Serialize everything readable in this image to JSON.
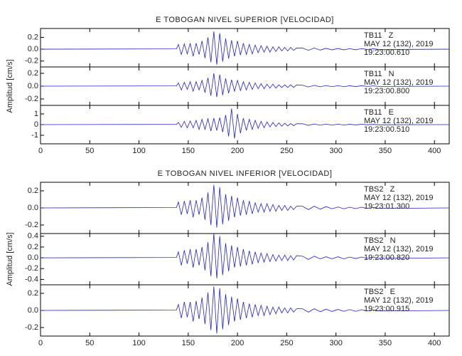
{
  "chart_data": [
    {
      "type": "line",
      "title": "E TOBOGAN NIVEL SUPERIOR [VELOCIDAD]",
      "ylabel": "Amplitud [cm/s]",
      "color": "#1f1fd6",
      "xlim": [
        0,
        415
      ],
      "xticks": [
        0,
        50,
        100,
        150,
        200,
        250,
        300,
        350,
        400
      ],
      "x": [
        0,
        138,
        140,
        143,
        146,
        149,
        152,
        155,
        158,
        161,
        164,
        167,
        170,
        173,
        176,
        179,
        182,
        185,
        188,
        191,
        194,
        197,
        200,
        203,
        206,
        209,
        212,
        215,
        218,
        221,
        224,
        227,
        230,
        233,
        236,
        239,
        242,
        245,
        248,
        251,
        254,
        257,
        260,
        266,
        272,
        278,
        284,
        290,
        296,
        302,
        308,
        314,
        320,
        326,
        332,
        338,
        344,
        415
      ],
      "series": [
        {
          "name": "TB11   Z",
          "date": "MAY 12 (132), 2019",
          "time": "19:23:00.610",
          "ylim": [
            -0.3,
            0.35
          ],
          "yticks": [
            -0.2,
            {
              "value": 0,
              "label": "0.0"
            },
            0.2
          ],
          "values": [
            0,
            0.005,
            0.08,
            -0.09,
            0.09,
            -0.08,
            0.1,
            -0.12,
            0.1,
            -0.09,
            0.14,
            -0.15,
            0.2,
            -0.22,
            0.3,
            -0.26,
            0.27,
            -0.21,
            0.18,
            -0.16,
            0.15,
            -0.12,
            0.14,
            -0.1,
            0.1,
            -0.09,
            0.08,
            -0.08,
            0.07,
            -0.06,
            0.06,
            -0.05,
            0.05,
            -0.05,
            0.04,
            -0.04,
            0.04,
            -0.03,
            0.03,
            -0.03,
            0.03,
            -0.02,
            0.02,
            0.02,
            -0.02,
            0.02,
            -0.015,
            0.015,
            -0.012,
            0.012,
            -0.012,
            0.01,
            -0.01,
            0.01,
            -0.006,
            0.006,
            -0.006,
            0
          ]
        },
        {
          "name": "TB11   N",
          "date": "MAY 12 (132), 2019",
          "time": "19:23:00.800",
          "ylim": [
            -0.3,
            0.3
          ],
          "yticks": [
            -0.2,
            {
              "value": 0,
              "label": "0.0"
            },
            0.2
          ],
          "values": [
            0,
            0.004,
            0.05,
            -0.06,
            0.06,
            -0.05,
            0.07,
            -0.08,
            0.07,
            -0.06,
            0.09,
            -0.1,
            0.13,
            -0.15,
            0.2,
            -0.17,
            0.18,
            -0.14,
            0.12,
            -0.11,
            0.1,
            -0.08,
            0.09,
            -0.07,
            0.07,
            -0.06,
            0.06,
            -0.05,
            0.05,
            -0.04,
            0.04,
            -0.04,
            0.03,
            -0.03,
            0.03,
            -0.03,
            0.02,
            -0.02,
            0.02,
            -0.02,
            0.02,
            -0.02,
            0.02,
            0.014,
            -0.012,
            0.012,
            -0.01,
            0.01,
            -0.008,
            0.008,
            -0.008,
            0.006,
            -0.006,
            0.006,
            -0.004,
            0.004,
            -0.004,
            0
          ]
        },
        {
          "name": "TB11   E",
          "date": "MAY 12 (132), 2019",
          "time": "19:23:00.510",
          "ylim": [
            -1.8,
            1.8
          ],
          "yticks": [
            -1,
            0,
            1
          ],
          "values": [
            0,
            0.02,
            0.2,
            -0.25,
            0.3,
            -0.3,
            0.35,
            -0.3,
            0.4,
            -0.45,
            0.5,
            -0.45,
            0.55,
            -0.6,
            0.6,
            -0.55,
            0.65,
            -0.7,
            0.9,
            -1.1,
            1.5,
            -1.3,
            1.0,
            -0.8,
            0.6,
            -0.55,
            0.5,
            -0.45,
            0.4,
            -0.35,
            0.3,
            -0.3,
            0.25,
            -0.22,
            0.2,
            -0.18,
            0.16,
            -0.15,
            0.13,
            -0.12,
            0.1,
            -0.1,
            0.08,
            0.08,
            -0.07,
            0.06,
            -0.06,
            0.05,
            -0.05,
            0.04,
            -0.04,
            0.03,
            -0.03,
            0.03,
            -0.02,
            0.02,
            -0.02,
            0
          ]
        }
      ]
    },
    {
      "type": "line",
      "title": "E TOBOGAN NIVEL INFERIOR [VELOCIDAD]",
      "ylabel": "Amplitud [cm/s]",
      "color": "#1f1fd6",
      "xlim": [
        0,
        415
      ],
      "xticks": [
        0,
        50,
        100,
        150,
        200,
        250,
        300,
        350,
        400
      ],
      "x": [
        0,
        138,
        140,
        143,
        146,
        149,
        152,
        155,
        158,
        161,
        164,
        167,
        170,
        173,
        176,
        179,
        182,
        185,
        188,
        191,
        194,
        197,
        200,
        203,
        206,
        209,
        212,
        215,
        218,
        221,
        224,
        227,
        230,
        233,
        236,
        239,
        242,
        245,
        248,
        251,
        254,
        257,
        260,
        266,
        272,
        278,
        284,
        290,
        296,
        302,
        308,
        314,
        320,
        326,
        332,
        338,
        344,
        415
      ],
      "series": [
        {
          "name": "TBS2   Z",
          "date": "MAY 12 (132), 2019",
          "time": "19:23:01.300",
          "ylim": [
            -0.3,
            0.3
          ],
          "yticks": [
            -0.2,
            {
              "value": 0,
              "label": "0.0"
            },
            0.2
          ],
          "values": [
            0,
            0.004,
            0.07,
            -0.08,
            0.08,
            -0.07,
            0.09,
            -0.11,
            0.09,
            -0.08,
            0.12,
            -0.14,
            0.18,
            -0.2,
            0.27,
            -0.23,
            0.24,
            -0.19,
            0.16,
            -0.15,
            0.14,
            -0.11,
            0.12,
            -0.09,
            0.09,
            -0.08,
            0.08,
            -0.07,
            0.06,
            -0.05,
            0.05,
            -0.05,
            0.05,
            -0.04,
            0.04,
            -0.04,
            0.03,
            -0.03,
            0.03,
            -0.03,
            0.02,
            -0.02,
            0.02,
            0.02,
            -0.02,
            0.02,
            -0.015,
            0.015,
            -0.01,
            0.01,
            -0.01,
            0.008,
            -0.008,
            0.008,
            -0.006,
            0.006,
            -0.006,
            0
          ]
        },
        {
          "name": "TBS2   N",
          "date": "MAY 12 (132), 2019",
          "time": "19:23:00.820",
          "ylim": [
            -0.5,
            0.45
          ],
          "yticks": [
            -0.4,
            -0.2,
            {
              "value": 0,
              "label": "0.0"
            },
            0.2,
            0.4
          ],
          "values": [
            0,
            0.006,
            0.11,
            -0.14,
            0.14,
            -0.11,
            0.16,
            -0.18,
            0.16,
            -0.14,
            0.2,
            -0.23,
            0.29,
            -0.34,
            0.45,
            -0.38,
            0.4,
            -0.32,
            0.27,
            -0.25,
            0.23,
            -0.18,
            0.2,
            -0.16,
            0.16,
            -0.14,
            0.13,
            -0.12,
            0.11,
            -0.09,
            0.09,
            -0.08,
            0.08,
            -0.07,
            0.06,
            -0.06,
            0.05,
            -0.05,
            0.05,
            -0.05,
            0.04,
            -0.04,
            0.04,
            0.03,
            -0.03,
            0.03,
            -0.02,
            0.02,
            -0.02,
            0.02,
            -0.02,
            0.014,
            -0.014,
            0.014,
            -0.01,
            0.01,
            -0.01,
            0
          ]
        },
        {
          "name": "TBS2   E",
          "date": "MAY 12 (132), 2019",
          "time": "19:23:00.915",
          "ylim": [
            -0.3,
            0.3
          ],
          "yticks": [
            -0.2,
            {
              "value": 0,
              "label": "0.0"
            },
            0.2
          ],
          "values": [
            0,
            0.004,
            0.07,
            -0.09,
            0.1,
            -0.08,
            0.1,
            -0.13,
            0.11,
            -0.1,
            0.15,
            -0.16,
            0.21,
            -0.23,
            0.28,
            -0.27,
            0.26,
            -0.22,
            0.19,
            -0.17,
            0.16,
            -0.13,
            0.14,
            -0.11,
            0.1,
            -0.09,
            0.08,
            -0.08,
            0.07,
            -0.06,
            0.06,
            -0.06,
            0.05,
            -0.05,
            0.04,
            -0.04,
            0.04,
            -0.03,
            0.03,
            -0.03,
            0.03,
            -0.02,
            0.02,
            0.02,
            -0.02,
            0.02,
            -0.015,
            0.015,
            -0.012,
            0.012,
            -0.01,
            0.01,
            -0.01,
            0.008,
            -0.006,
            0.006,
            -0.006,
            0
          ]
        }
      ]
    }
  ]
}
